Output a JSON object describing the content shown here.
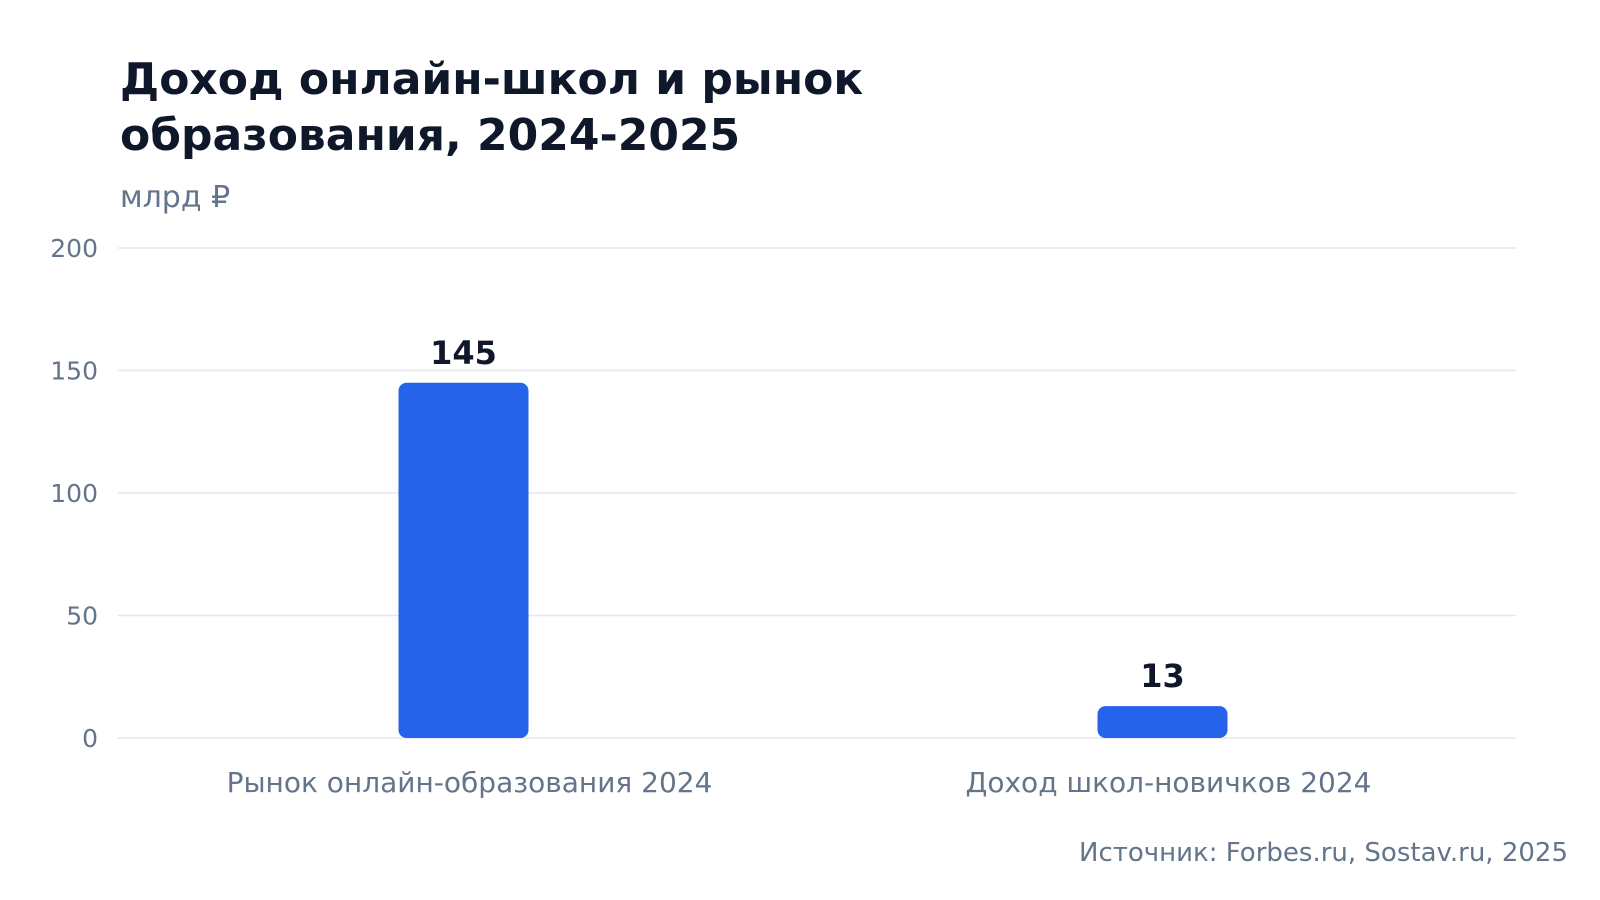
{
  "colors": {
    "bar": "#2563eb",
    "grid": "#e5e7eb",
    "text_primary": "#0f172a",
    "text_muted": "#64748b",
    "background": "#ffffff"
  },
  "source": "Источник: Forbes.ru, Sostav.ru, 2025",
  "chart_data": {
    "type": "bar",
    "title": "Доход онлайн-школ и рынок образования, 2024-2025",
    "subtitle": "млрд ₽",
    "xlabel": "",
    "ylabel": "",
    "categories": [
      "Рынок онлайн-образования 2024",
      "Доход школ-новичков 2024"
    ],
    "values": [
      145,
      13
    ],
    "data_labels": [
      "145",
      "13"
    ],
    "ylim": [
      0,
      200
    ],
    "yticks": [
      0,
      50,
      100,
      150,
      200
    ],
    "grid": true,
    "legend": "none"
  }
}
